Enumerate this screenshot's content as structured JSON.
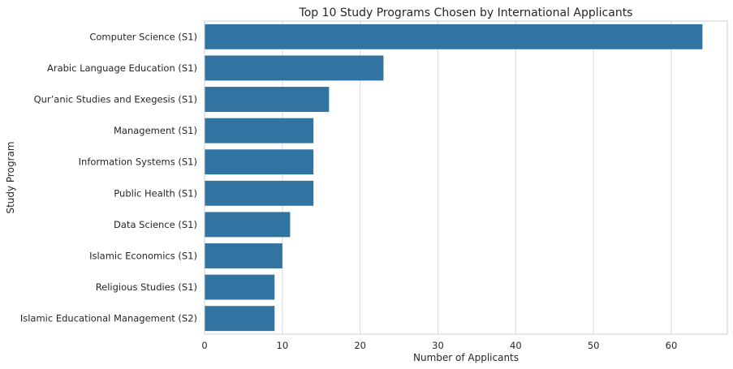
{
  "chart_data": {
    "type": "bar",
    "orientation": "horizontal",
    "title": "Top 10 Study Programs Chosen by International Applicants",
    "xlabel": "Number of Applicants",
    "ylabel": "Study Program",
    "xlim": [
      0,
      67.2
    ],
    "xticks": [
      0,
      10,
      20,
      30,
      40,
      50,
      60
    ],
    "grid": true,
    "bar_color": "#3274a1",
    "categories": [
      "Computer Science (S1)",
      "Arabic Language Education (S1)",
      "Qur’anic Studies and Exegesis (S1)",
      "Management (S1)",
      "Information Systems (S1)",
      "Public Health (S1)",
      "Data Science (S1)",
      "Islamic Economics (S1)",
      "Religious Studies (S1)",
      "Islamic Educational Management (S2)"
    ],
    "values": [
      64,
      23,
      16,
      14,
      14,
      14,
      11,
      10,
      9,
      9
    ]
  }
}
